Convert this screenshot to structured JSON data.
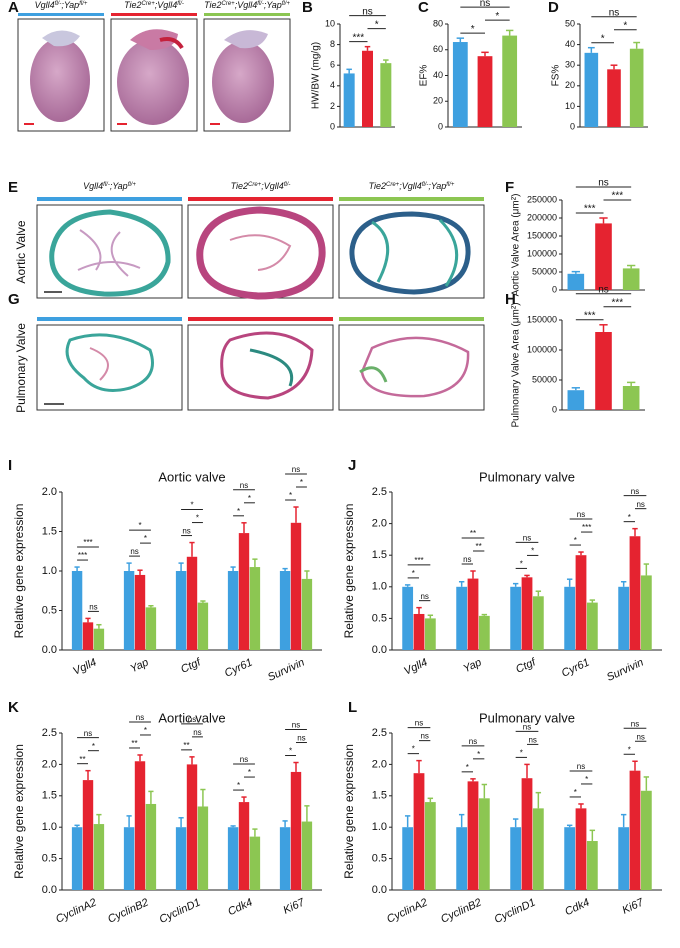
{
  "figure": {
    "panel_letters": [
      "A",
      "B",
      "C",
      "D",
      "E",
      "F",
      "G",
      "H",
      "I",
      "J",
      "K",
      "L"
    ],
    "heart_genotypes": [
      [
        "Vgll4",
        "fl/-",
        ";Yap",
        "fl/+"
      ],
      [
        "Tie2",
        "Cre+",
        ";Vgll4",
        "fl/-"
      ],
      [
        "Tie2",
        "Cre+",
        ";Vgll4",
        "fl/-",
        ";Yap",
        "fl/+"
      ]
    ],
    "valve_genotypes": [
      [
        "Vgll4",
        "fl/-",
        ";Yap",
        "fl/+"
      ],
      [
        "Tie2",
        "Cre+",
        ";Vgll4",
        "fl/-"
      ],
      [
        "Tie2",
        "Cre+",
        ";Vgll4",
        "fl/-",
        ";Yap",
        "fl/+"
      ]
    ],
    "valve_labels": [
      "Aortic Valve",
      "Pulmonary Valve"
    ],
    "group_colors": [
      "#3ea0e0",
      "#e52330",
      "#8cc652"
    ]
  },
  "chart_data": [
    {
      "type": "bar",
      "ylabel": "HW/BW (mg/g)",
      "values": [
        5.2,
        7.4,
        6.2
      ],
      "errors": [
        0.4,
        0.4,
        0.3
      ],
      "colors": [
        "#3ea0e0",
        "#e52330",
        "#8cc652"
      ],
      "ylim": [
        0,
        10
      ],
      "yticks": [
        0,
        2,
        4,
        6,
        8,
        10
      ],
      "significance": [
        {
          "pair": [
            0,
            1
          ],
          "label": "***"
        },
        {
          "pair": [
            1,
            2
          ],
          "label": "*"
        },
        {
          "pair": [
            0,
            2
          ],
          "label": "ns"
        }
      ]
    },
    {
      "type": "bar",
      "ylabel": "EF%",
      "values": [
        66,
        55,
        71
      ],
      "errors": [
        3,
        3,
        4
      ],
      "colors": [
        "#3ea0e0",
        "#e52330",
        "#8cc652"
      ],
      "ylim": [
        0,
        80
      ],
      "yticks": [
        0,
        20,
        40,
        60,
        80
      ],
      "significance": [
        {
          "pair": [
            0,
            1
          ],
          "label": "*"
        },
        {
          "pair": [
            1,
            2
          ],
          "label": "*"
        },
        {
          "pair": [
            0,
            2
          ],
          "label": "ns"
        }
      ]
    },
    {
      "type": "bar",
      "ylabel": "FS%",
      "values": [
        36,
        28,
        38
      ],
      "errors": [
        2.5,
        2,
        3
      ],
      "colors": [
        "#3ea0e0",
        "#e52330",
        "#8cc652"
      ],
      "ylim": [
        0,
        50
      ],
      "yticks": [
        0,
        10,
        20,
        30,
        40,
        50
      ],
      "significance": [
        {
          "pair": [
            0,
            1
          ],
          "label": "*"
        },
        {
          "pair": [
            1,
            2
          ],
          "label": "*"
        },
        {
          "pair": [
            0,
            2
          ],
          "label": "ns"
        }
      ]
    },
    {
      "type": "bar",
      "ylabel": "Aortic Valve Area (μm²)",
      "values": [
        45000,
        185000,
        60000
      ],
      "errors": [
        6000,
        15000,
        8000
      ],
      "colors": [
        "#3ea0e0",
        "#e52330",
        "#8cc652"
      ],
      "ylim": [
        0,
        250000
      ],
      "yticks": [
        0,
        50000,
        100000,
        150000,
        200000,
        250000
      ],
      "significance": [
        {
          "pair": [
            0,
            1
          ],
          "label": "***"
        },
        {
          "pair": [
            1,
            2
          ],
          "label": "***"
        },
        {
          "pair": [
            0,
            2
          ],
          "label": "ns"
        }
      ]
    },
    {
      "type": "bar",
      "ylabel": "Pulmonary Valve Area (μm²)",
      "values": [
        33000,
        130000,
        40000
      ],
      "errors": [
        4000,
        12000,
        6000
      ],
      "colors": [
        "#3ea0e0",
        "#e52330",
        "#8cc652"
      ],
      "ylim": [
        0,
        150000
      ],
      "yticks": [
        0,
        50000,
        100000,
        150000
      ],
      "significance": [
        {
          "pair": [
            0,
            1
          ],
          "label": "***"
        },
        {
          "pair": [
            1,
            2
          ],
          "label": "***"
        },
        {
          "pair": [
            0,
            2
          ],
          "label": "ns"
        }
      ]
    },
    {
      "type": "bar",
      "title": "Aortic valve",
      "ylabel": "Relative gene expression",
      "categories": [
        "Vgll4",
        "Yap",
        "Ctgf",
        "Cyr61",
        "Survivin"
      ],
      "series": [
        {
          "color": "#3ea0e0",
          "values": [
            1.0,
            1.0,
            1.0,
            1.0,
            1.0
          ],
          "errors": [
            0.05,
            0.1,
            0.1,
            0.05,
            0.03
          ]
        },
        {
          "color": "#e52330",
          "values": [
            0.35,
            0.95,
            1.18,
            1.48,
            1.61
          ],
          "errors": [
            0.05,
            0.06,
            0.18,
            0.13,
            0.2
          ]
        },
        {
          "color": "#8cc652",
          "values": [
            0.27,
            0.54,
            0.6,
            1.05,
            0.9
          ],
          "errors": [
            0.05,
            0.02,
            0.02,
            0.1,
            0.1
          ]
        }
      ],
      "ylim": [
        0,
        2
      ],
      "yticks": [
        {
          "value": 0,
          "label": "0.0"
        },
        0.5,
        {
          "value": 1,
          "label": "1.0"
        },
        1.5,
        {
          "value": 2,
          "label": "2.0"
        }
      ],
      "significance": [
        [
          {
            "pair": [
              1,
              2
            ],
            "label": "ns"
          },
          {
            "pair": [
              0,
              1
            ],
            "label": "***"
          },
          {
            "pair": [
              0,
              2
            ],
            "label": "***"
          }
        ],
        [
          {
            "pair": [
              0,
              1
            ],
            "label": "ns"
          },
          {
            "pair": [
              1,
              2
            ],
            "label": "*"
          },
          {
            "pair": [
              0,
              2
            ],
            "label": "*"
          }
        ],
        [
          {
            "pair": [
              0,
              1
            ],
            "label": "ns"
          },
          {
            "pair": [
              1,
              2
            ],
            "label": "*"
          },
          {
            "pair": [
              0,
              2
            ],
            "label": "*"
          }
        ],
        [
          {
            "pair": [
              0,
              1
            ],
            "label": "*"
          },
          {
            "pair": [
              1,
              2
            ],
            "label": "*"
          },
          {
            "pair": [
              0,
              2
            ],
            "label": "ns"
          }
        ],
        [
          {
            "pair": [
              0,
              1
            ],
            "label": "*"
          },
          {
            "pair": [
              1,
              2
            ],
            "label": "*"
          },
          {
            "pair": [
              0,
              2
            ],
            "label": "ns"
          }
        ]
      ]
    },
    {
      "type": "bar",
      "title": "Pulmonary valve",
      "ylabel": "Relative gene expression",
      "categories": [
        "Vgll4",
        "Yap",
        "Ctgf",
        "Cyr61",
        "Survivin"
      ],
      "series": [
        {
          "color": "#3ea0e0",
          "values": [
            1.0,
            1.0,
            1.0,
            1.0,
            1.0
          ],
          "errors": [
            0.03,
            0.08,
            0.05,
            0.12,
            0.08
          ]
        },
        {
          "color": "#e52330",
          "values": [
            0.57,
            1.13,
            1.15,
            1.5,
            1.8
          ],
          "errors": [
            0.1,
            0.12,
            0.03,
            0.05,
            0.12
          ]
        },
        {
          "color": "#8cc652",
          "values": [
            0.5,
            0.54,
            0.85,
            0.75,
            1.18
          ],
          "errors": [
            0.05,
            0.02,
            0.08,
            0.04,
            0.18
          ]
        }
      ],
      "ylim": [
        0,
        2.5
      ],
      "yticks": [
        {
          "value": 0,
          "label": "0.0"
        },
        0.5,
        {
          "value": 1,
          "label": "1.0"
        },
        1.5,
        {
          "value": 2,
          "label": "2.0"
        },
        2.5
      ],
      "significance": [
        [
          {
            "pair": [
              1,
              2
            ],
            "label": "ns"
          },
          {
            "pair": [
              0,
              1
            ],
            "label": "*"
          },
          {
            "pair": [
              0,
              2
            ],
            "label": "***"
          }
        ],
        [
          {
            "pair": [
              0,
              1
            ],
            "label": "ns"
          },
          {
            "pair": [
              1,
              2
            ],
            "label": "**"
          },
          {
            "pair": [
              0,
              2
            ],
            "label": "**"
          }
        ],
        [
          {
            "pair": [
              0,
              1
            ],
            "label": "*"
          },
          {
            "pair": [
              1,
              2
            ],
            "label": "*"
          },
          {
            "pair": [
              0,
              2
            ],
            "label": "ns"
          }
        ],
        [
          {
            "pair": [
              0,
              1
            ],
            "label": "*"
          },
          {
            "pair": [
              1,
              2
            ],
            "label": "***"
          },
          {
            "pair": [
              0,
              2
            ],
            "label": "ns"
          }
        ],
        [
          {
            "pair": [
              0,
              1
            ],
            "label": "*"
          },
          {
            "pair": [
              1,
              2
            ],
            "label": "ns"
          },
          {
            "pair": [
              0,
              2
            ],
            "label": "ns"
          }
        ]
      ]
    },
    {
      "type": "bar",
      "title": "Aortic valve",
      "ylabel": "Relative gene expression",
      "categories": [
        "CyclinA2",
        "CyclinB2",
        "CyclinD1",
        "Cdk4",
        "Ki67"
      ],
      "series": [
        {
          "color": "#3ea0e0",
          "values": [
            1.0,
            1.0,
            1.0,
            1.0,
            1.0
          ],
          "errors": [
            0.03,
            0.18,
            0.15,
            0.02,
            0.1
          ]
        },
        {
          "color": "#e52330",
          "values": [
            1.75,
            2.05,
            2.0,
            1.4,
            1.88
          ],
          "errors": [
            0.15,
            0.1,
            0.12,
            0.08,
            0.15
          ]
        },
        {
          "color": "#8cc652",
          "values": [
            1.05,
            1.37,
            1.33,
            0.85,
            1.09
          ],
          "errors": [
            0.15,
            0.2,
            0.27,
            0.12,
            0.25
          ]
        }
      ],
      "ylim": [
        0,
        2.5
      ],
      "yticks": [
        {
          "value": 0,
          "label": "0.0"
        },
        0.5,
        {
          "value": 1,
          "label": "1.0"
        },
        1.5,
        {
          "value": 2,
          "label": "2.0"
        },
        2.5
      ],
      "significance": [
        [
          {
            "pair": [
              0,
              1
            ],
            "label": "**"
          },
          {
            "pair": [
              1,
              2
            ],
            "label": "*"
          },
          {
            "pair": [
              0,
              2
            ],
            "label": "ns"
          }
        ],
        [
          {
            "pair": [
              0,
              1
            ],
            "label": "**"
          },
          {
            "pair": [
              1,
              2
            ],
            "label": "*"
          },
          {
            "pair": [
              0,
              2
            ],
            "label": "ns"
          }
        ],
        [
          {
            "pair": [
              0,
              1
            ],
            "label": "**"
          },
          {
            "pair": [
              1,
              2
            ],
            "label": "ns"
          },
          {
            "pair": [
              0,
              2
            ],
            "label": "ns"
          }
        ],
        [
          {
            "pair": [
              0,
              1
            ],
            "label": "*"
          },
          {
            "pair": [
              1,
              2
            ],
            "label": "*"
          },
          {
            "pair": [
              0,
              2
            ],
            "label": "ns"
          }
        ],
        [
          {
            "pair": [
              0,
              1
            ],
            "label": "*"
          },
          {
            "pair": [
              1,
              2
            ],
            "label": "ns"
          },
          {
            "pair": [
              0,
              2
            ],
            "label": "ns"
          }
        ]
      ]
    },
    {
      "type": "bar",
      "title": "Pulmonary valve",
      "ylabel": "Relative gene expression",
      "categories": [
        "CyclinA2",
        "CyclinB2",
        "CyclinD1",
        "Cdk4",
        "Ki67"
      ],
      "series": [
        {
          "color": "#3ea0e0",
          "values": [
            1.0,
            1.0,
            1.0,
            1.0,
            1.0
          ],
          "errors": [
            0.18,
            0.2,
            0.13,
            0.03,
            0.2
          ]
        },
        {
          "color": "#e52330",
          "values": [
            1.86,
            1.73,
            1.78,
            1.3,
            1.9
          ],
          "errors": [
            0.2,
            0.04,
            0.22,
            0.07,
            0.15
          ]
        },
        {
          "color": "#8cc652",
          "values": [
            1.4,
            1.46,
            1.3,
            0.78,
            1.58
          ],
          "errors": [
            0.06,
            0.22,
            0.25,
            0.17,
            0.22
          ]
        }
      ],
      "ylim": [
        0,
        2.5
      ],
      "yticks": [
        {
          "value": 0,
          "label": "0.0"
        },
        0.5,
        {
          "value": 1,
          "label": "1.0"
        },
        1.5,
        {
          "value": 2,
          "label": "2.0"
        },
        2.5
      ],
      "significance": [
        [
          {
            "pair": [
              0,
              1
            ],
            "label": "*"
          },
          {
            "pair": [
              1,
              2
            ],
            "label": "ns"
          },
          {
            "pair": [
              0,
              2
            ],
            "label": "ns"
          }
        ],
        [
          {
            "pair": [
              0,
              1
            ],
            "label": "*"
          },
          {
            "pair": [
              1,
              2
            ],
            "label": "*"
          },
          {
            "pair": [
              0,
              2
            ],
            "label": "ns"
          }
        ],
        [
          {
            "pair": [
              0,
              1
            ],
            "label": "*"
          },
          {
            "pair": [
              1,
              2
            ],
            "label": "ns"
          },
          {
            "pair": [
              0,
              2
            ],
            "label": "ns"
          }
        ],
        [
          {
            "pair": [
              0,
              1
            ],
            "label": "*"
          },
          {
            "pair": [
              1,
              2
            ],
            "label": "*"
          },
          {
            "pair": [
              0,
              2
            ],
            "label": "ns"
          }
        ],
        [
          {
            "pair": [
              0,
              1
            ],
            "label": "*"
          },
          {
            "pair": [
              1,
              2
            ],
            "label": "ns"
          },
          {
            "pair": [
              0,
              2
            ],
            "label": "ns"
          }
        ]
      ]
    }
  ]
}
